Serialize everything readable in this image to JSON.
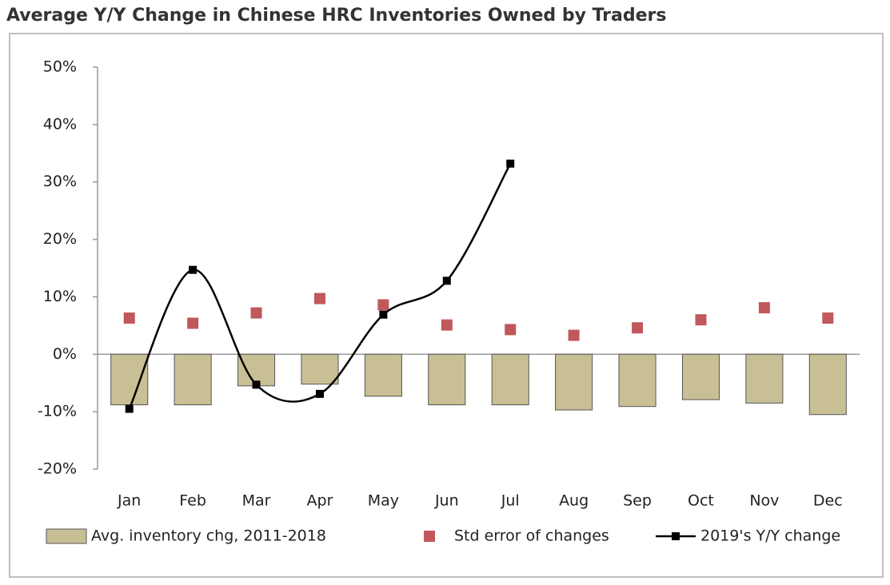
{
  "chart_data": {
    "type": "bar",
    "title": "Average Y/Y Change in Chinese HRC Inventories Owned by Traders",
    "categories": [
      "Jan",
      "Feb",
      "Mar",
      "Apr",
      "May",
      "Jun",
      "Jul",
      "Aug",
      "Sep",
      "Oct",
      "Nov",
      "Dec"
    ],
    "series": [
      {
        "name": "Avg. inventory chg, 2011-2018",
        "type": "bar",
        "color": "#c9bf95",
        "values": [
          -8.8,
          -8.8,
          -5.5,
          -5.2,
          -7.3,
          -8.8,
          -8.8,
          -9.7,
          -9.1,
          -7.9,
          -8.5,
          -10.5
        ]
      },
      {
        "name": "Std error of changes",
        "type": "scatter",
        "color": "#c0585c",
        "values": [
          6.3,
          5.4,
          7.2,
          9.7,
          8.6,
          5.1,
          4.3,
          3.3,
          4.6,
          6.0,
          8.1,
          6.3
        ]
      },
      {
        "name": "2019's Y/Y change",
        "type": "line",
        "color": "#000000",
        "values": [
          -9.5,
          14.7,
          -5.3,
          -6.9,
          6.9,
          12.8,
          33.2,
          null,
          null,
          null,
          null,
          null
        ]
      }
    ],
    "ylim": [
      -20,
      50
    ],
    "yticks": [
      {
        "value": -20,
        "label": "-20%"
      },
      {
        "value": -10,
        "label": "-10%"
      },
      {
        "value": 0,
        "label": "0%"
      },
      {
        "value": 10,
        "label": "10%"
      },
      {
        "value": 20,
        "label": "20%"
      },
      {
        "value": 30,
        "label": "30%"
      },
      {
        "value": 40,
        "label": "40%"
      },
      {
        "value": 50,
        "label": "50%"
      }
    ],
    "grid": false,
    "legend": "bottom"
  }
}
